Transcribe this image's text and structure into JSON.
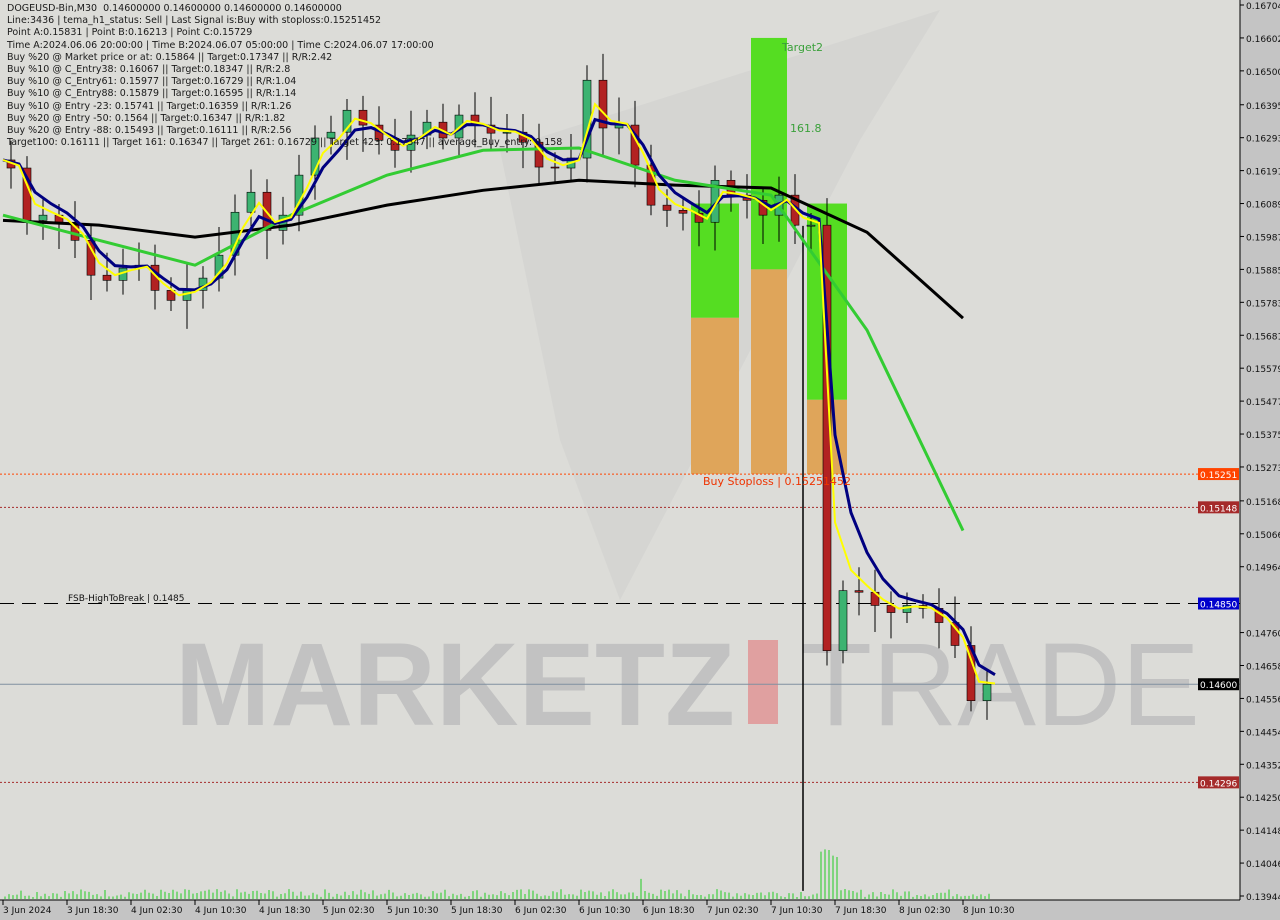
{
  "header": {
    "lines": [
      "DOGEUSD-Bin,M30  0.14600000 0.14600000 0.14600000 0.14600000",
      "Line:3436 | tema_h1_status: Sell | Last Signal is:Buy with stoploss:0.15251452",
      "Point A:0.15831 | Point B:0.16213 | Point C:0.15729",
      "Time A:2024.06.06 20:00:00 | Time B:2024.06.07 05:00:00 | Time C:2024.06.07 17:00:00",
      "Buy %20 @ Market price or at: 0.15864 || Target:0.17347 || R/R:2.42",
      "Buy %10 @ C_Entry38: 0.16067 || Target:0.18347 || R/R:2.8",
      "Buy %10 @ C_Entry61: 0.15977 || Target:0.16729 || R/R:1.04",
      "Buy %10 @ C_Entry88: 0.15879 || Target:0.16595 || R/R:1.14",
      "Buy %10 @ Entry -23: 0.15741 || Target:0.16359 || R/R:1.26",
      "Buy %20 @ Entry -50: 0.1564 || Target:0.16347 || R/R:1.82",
      "Buy %20 @ Entry -88: 0.15493 || Target:0.16111 || R/R:2.56",
      "Target100: 0.16111 || Target 161: 0.16347 || Target 261: 0.16729 || Target 423: 0.17347 || average_Buy_entry: 0.158"
    ]
  },
  "labels": {
    "target2": "Target2",
    "fib": "161.8",
    "buy_stoploss": "Buy Stoploss | 0.15251452",
    "fsb": "FSB-HighToBreak | 0.1485",
    "watermark_left": "MARKETZ",
    "watermark_right": "TRADE"
  },
  "colors": {
    "background": "#dcdcd8",
    "bull_candle": "#3cb371",
    "bear_candle": "#b22222",
    "long_ma": "#000000",
    "mid_ma": "#33cc33",
    "fast_ma": "#000080",
    "signal_line": "#ffff00",
    "target_zone": "#55dd22",
    "risk_zone": "#dfa55a",
    "stoploss": "#ff4400",
    "level_brown": "#a52a2a",
    "fsb_blue": "#0000ff",
    "current_price": "#000000"
  },
  "chart_data": {
    "type": "candlestick",
    "symbol": "DOGEUSD-Bin",
    "timeframe": "M30",
    "ylim": [
      0.13944,
      0.16704
    ],
    "y_ticks": [
      "0.16704",
      "0.16602",
      "0.16500",
      "0.16395",
      "0.16293",
      "0.16191",
      "0.16089",
      "0.15987",
      "0.15885",
      "0.15783",
      "0.15681",
      "0.15579",
      "0.15477",
      "0.15375",
      "0.15273",
      "0.15168",
      "0.15066",
      "0.14964",
      "0.14760",
      "0.14658",
      "0.14556",
      "0.14454",
      "0.14352",
      "0.14250",
      "0.14148",
      "0.14046",
      "0.13944"
    ],
    "x_ticks": [
      "3 Jun 2024",
      "3 Jun 18:30",
      "4 Jun 02:30",
      "4 Jun 10:30",
      "4 Jun 18:30",
      "5 Jun 02:30",
      "5 Jun 10:30",
      "5 Jun 18:30",
      "6 Jun 02:30",
      "6 Jun 10:30",
      "6 Jun 18:30",
      "7 Jun 02:30",
      "7 Jun 10:30",
      "7 Jun 18:30",
      "8 Jun 02:30",
      "8 Jun 10:30"
    ],
    "price_series": {
      "start": "3 Jun 2024 10:30",
      "interval_hours": 2,
      "close": [
        0.16224,
        0.16199,
        0.16037,
        0.16053,
        0.16031,
        0.15975,
        0.15867,
        0.15851,
        0.15889,
        0.15898,
        0.1582,
        0.15789,
        0.1582,
        0.15858,
        0.15929,
        0.16062,
        0.16124,
        0.16006,
        0.16053,
        0.16177,
        0.16292,
        0.1631,
        0.16378,
        0.16332,
        0.16285,
        0.16254,
        0.16301,
        0.16341,
        0.16292,
        0.16363,
        0.16332,
        0.16307,
        0.1631,
        0.16279,
        0.16202,
        0.16199,
        0.1623,
        0.16471,
        0.16323,
        0.16332,
        0.16208,
        0.16084,
        0.16068,
        0.16059,
        0.16031,
        0.16161,
        0.16115,
        0.16099,
        0.16053,
        0.16115,
        0.16022,
        0.16022,
        0.14704,
        0.1489,
        0.14885,
        0.14844,
        0.14822,
        0.14844,
        0.14835,
        0.14791,
        0.1472,
        0.14549,
        0.146
      ],
      "extreme_low": {
        "time": "7 Jun 14:30",
        "price": 0.1396
      }
    },
    "moving_averages": {
      "interval_hours": 12,
      "long": [
        0.16037,
        0.16022,
        0.15985,
        0.16022,
        0.16084,
        0.1613,
        0.16161,
        0.16146,
        0.16137,
        0.16,
        0.15734
      ],
      "mid": [
        0.16053,
        0.15975,
        0.15898,
        0.16053,
        0.16177,
        0.16254,
        0.16261,
        0.16161,
        0.16115,
        0.15697,
        0.15076
      ]
    },
    "levels": [
      {
        "price": 0.15251,
        "label": "0.15251",
        "color": "#ff4400",
        "style": "dotted"
      },
      {
        "price": 0.15148,
        "label": "0.15148",
        "color": "#a52a2a",
        "style": "dotted"
      },
      {
        "price": 0.1485,
        "label": "0.14850",
        "color": "#0000cc",
        "style": "dashed-black"
      },
      {
        "price": 0.146,
        "label": "0.14600",
        "color": "#000000",
        "style": "solid-gray"
      },
      {
        "price": 0.14296,
        "label": "0.14296",
        "color": "#a52a2a",
        "style": "dotted"
      }
    ],
    "zones": [
      {
        "from": "7 Jun 00:30",
        "to": "7 Jun 06:30",
        "green_top": 0.16089,
        "split": 0.15735,
        "bottom": 0.15251
      },
      {
        "from": "7 Jun 08:00",
        "to": "7 Jun 12:30",
        "green_top": 0.16602,
        "split": 0.15885,
        "bottom": 0.15251
      },
      {
        "from": "7 Jun 15:00",
        "to": "7 Jun 20:00",
        "green_top": 0.16089,
        "split": 0.15481,
        "bottom": 0.15251
      }
    ]
  }
}
